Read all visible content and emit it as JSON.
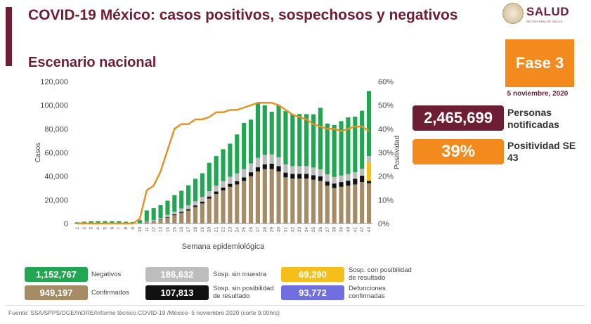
{
  "header": {
    "title": "COVID-19 México: casos positivos, sospechosos y negativos",
    "subtitle": "Escenario nacional",
    "logo_text": "SALUD",
    "logo_sub": "SECRETARÍA DE SALUD",
    "fase": "Fase 3",
    "fecha": "5 noviembre, 2020"
  },
  "kpis": {
    "notificadas_value": "2,465,699",
    "notificadas_label": "Personas notificadas",
    "positividad_value": "39%",
    "positividad_label": "Positividad SE 43"
  },
  "legend": {
    "negativos_value": "1,152,767",
    "negativos_label": "Negativos",
    "confirmados_value": "949,197",
    "confirmados_label": "Confirmados",
    "sin_muestra_value": "186,632",
    "sin_muestra_label": "Sosp. sin muestra",
    "sin_posibilidad_value": "107,813",
    "sin_posibilidad_label": "Sosp. sin posibilidad de resultado",
    "con_posibilidad_value": "69,290",
    "con_posibilidad_label": "Sosp. con posibilidad de resultado",
    "defunciones_value": "93,772",
    "defunciones_label": "Defunciones confirmadas"
  },
  "fuente": "Fuente: SSA/SPPS/DGE/InDRE/Informe técnico.COVID-19 /México- 5 noviembre 2020 (corte 9:00hrs)",
  "colors": {
    "brand": "#6e1e34",
    "orange": "#f28a1e",
    "negativos": "#21a652",
    "confirmados": "#a58c65",
    "sin_muestra": "#bdbdbd",
    "sin_posibilidad": "#111111",
    "con_posibilidad": "#f5be1a",
    "defunciones": "#6f6fe0",
    "positividad_line": "#e6922a"
  },
  "chart_data": {
    "type": "bar",
    "stacked": true,
    "xlabel": "Semana epidemiológica",
    "ylabel": "Casos",
    "y2label": "Positividad",
    "ylim": [
      0,
      120000
    ],
    "y2lim": [
      0,
      60
    ],
    "yticks": [
      "0",
      "20,000",
      "40,000",
      "60,000",
      "80,000",
      "100,000",
      "120,000"
    ],
    "y2ticks": [
      "0%",
      "10%",
      "20%",
      "30%",
      "40%",
      "50%",
      "60%"
    ],
    "categories": [
      "1",
      "2",
      "3",
      "4",
      "5",
      "6",
      "7",
      "8",
      "9",
      "10",
      "11",
      "12",
      "13",
      "14",
      "15",
      "16",
      "17",
      "18",
      "19",
      "20",
      "21",
      "22",
      "23",
      "24",
      "25",
      "26",
      "27",
      "28",
      "29",
      "30",
      "31",
      "32",
      "33",
      "34",
      "35",
      "36",
      "37",
      "38",
      "39",
      "40",
      "41",
      "42",
      "43"
    ],
    "series": [
      {
        "name": "Confirmados",
        "values": [
          0,
          0,
          0,
          0,
          0,
          0,
          0,
          0,
          100,
          400,
          1500,
          2000,
          3000,
          5000,
          7000,
          9000,
          11000,
          14000,
          17000,
          21000,
          25000,
          28000,
          31000,
          33000,
          36000,
          40000,
          44000,
          46000,
          46000,
          44000,
          39000,
          38000,
          38000,
          38000,
          37000,
          36000,
          32000,
          30000,
          31000,
          32000,
          33000,
          35000,
          34000
        ]
      },
      {
        "name": "Sosp. sin posibilidad de resultado",
        "values": [
          0,
          0,
          0,
          0,
          0,
          0,
          0,
          0,
          0,
          0,
          100,
          200,
          300,
          500,
          700,
          900,
          1100,
          1300,
          1500,
          1800,
          2000,
          2300,
          2500,
          2800,
          3000,
          3300,
          3500,
          4000,
          4500,
          4500,
          4000,
          4000,
          4000,
          4000,
          3800,
          3800,
          3500,
          3800,
          4000,
          4200,
          4800,
          5500,
          2000
        ]
      },
      {
        "name": "Sosp. con posibilidad de resultado",
        "values": [
          0,
          0,
          0,
          0,
          0,
          0,
          0,
          0,
          0,
          0,
          0,
          0,
          0,
          0,
          0,
          0,
          0,
          0,
          0,
          0,
          0,
          0,
          0,
          0,
          0,
          0,
          0,
          0,
          0,
          0,
          0,
          0,
          0,
          0,
          0,
          0,
          0,
          0,
          0,
          0,
          0,
          300,
          16000
        ]
      },
      {
        "name": "Sosp. sin muestra",
        "values": [
          0,
          0,
          0,
          0,
          0,
          0,
          0,
          0,
          0,
          0,
          400,
          800,
          1200,
          1800,
          2300,
          2800,
          3200,
          3500,
          4000,
          4500,
          5000,
          5500,
          6000,
          6500,
          7000,
          7500,
          8000,
          8000,
          8000,
          7500,
          7000,
          6500,
          6500,
          6500,
          6500,
          6000,
          6000,
          5500,
          5500,
          5500,
          5500,
          5500,
          5000
        ]
      },
      {
        "name": "Negativos",
        "values": [
          1000,
          1500,
          2000,
          2000,
          2000,
          2000,
          2000,
          1500,
          1200,
          2500,
          9000,
          10000,
          11000,
          12000,
          14000,
          15000,
          17000,
          19000,
          20000,
          24000,
          25000,
          27000,
          28000,
          33000,
          39000,
          37000,
          46000,
          42000,
          36000,
          44000,
          45000,
          44000,
          44000,
          44000,
          45000,
          52000,
          43000,
          44000,
          46000,
          48000,
          47000,
          49000,
          55000
        ]
      }
    ],
    "line": {
      "name": "Positividad",
      "values": [
        0,
        0,
        0,
        0,
        0,
        0,
        0,
        0,
        0,
        2,
        14,
        16,
        22,
        31,
        40,
        42,
        42,
        44,
        44,
        45,
        47,
        47,
        48,
        48,
        49,
        50,
        51,
        51,
        51,
        50,
        48,
        46,
        45,
        44,
        42,
        41,
        40,
        40,
        39,
        40,
        41,
        41,
        39
      ]
    }
  }
}
